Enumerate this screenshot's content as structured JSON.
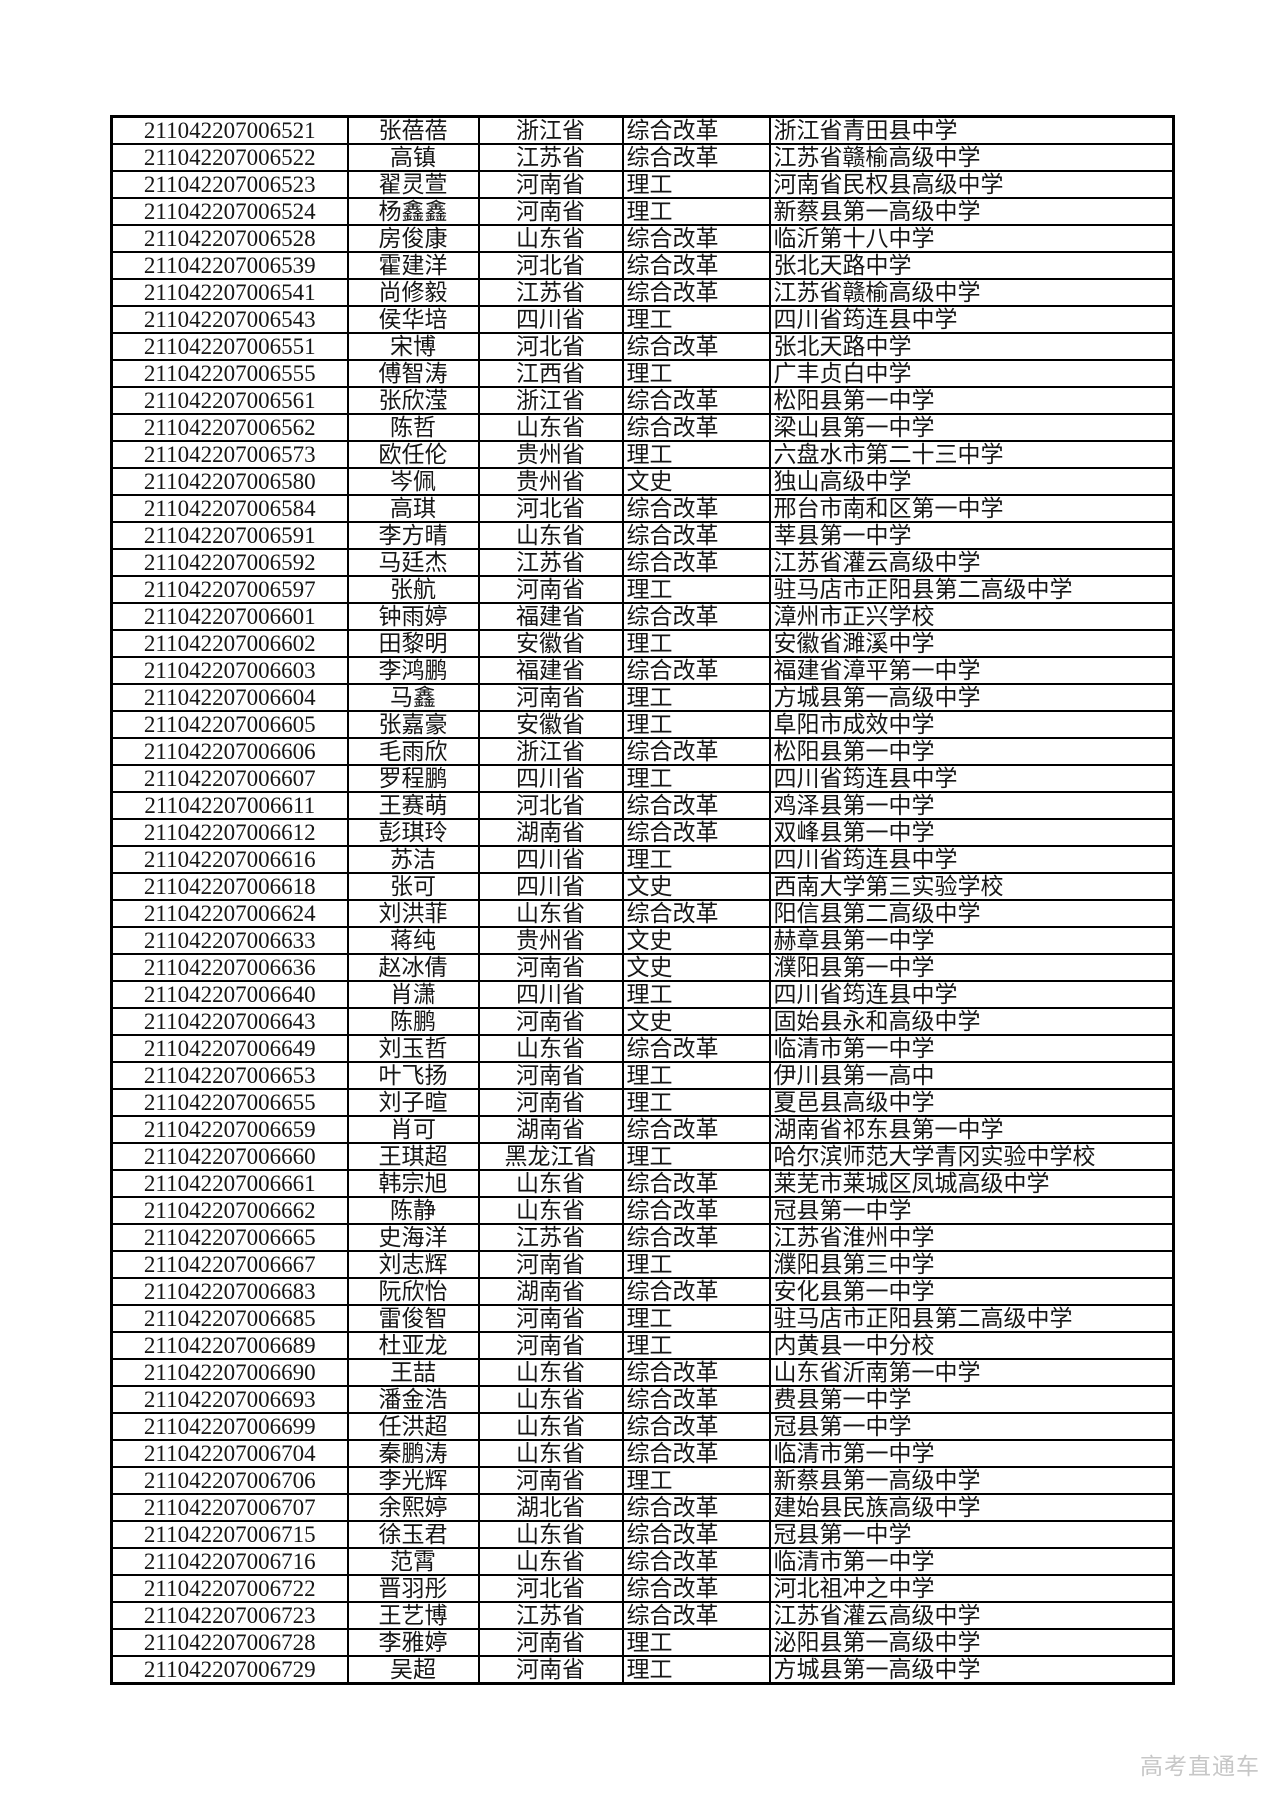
{
  "colors": {
    "grid": "#000000",
    "text": "#161616",
    "watermark": "#c7c7c7",
    "background": "#ffffff"
  },
  "watermark": {
    "text": "高考直通车"
  },
  "table": {
    "rows": [
      [
        "211042207006521",
        "张蓓蓓",
        "浙江省",
        "综合改革",
        "浙江省青田县中学"
      ],
      [
        "211042207006522",
        "高镇",
        "江苏省",
        "综合改革",
        "江苏省赣榆高级中学"
      ],
      [
        "211042207006523",
        "翟灵萱",
        "河南省",
        "理工",
        "河南省民权县高级中学"
      ],
      [
        "211042207006524",
        "杨鑫鑫",
        "河南省",
        "理工",
        "新蔡县第一高级中学"
      ],
      [
        "211042207006528",
        "房俊康",
        "山东省",
        "综合改革",
        "临沂第十八中学"
      ],
      [
        "211042207006539",
        "霍建洋",
        "河北省",
        "综合改革",
        "张北天路中学"
      ],
      [
        "211042207006541",
        "尚修毅",
        "江苏省",
        "综合改革",
        "江苏省赣榆高级中学"
      ],
      [
        "211042207006543",
        "侯华培",
        "四川省",
        "理工",
        "四川省筠连县中学"
      ],
      [
        "211042207006551",
        "宋博",
        "河北省",
        "综合改革",
        "张北天路中学"
      ],
      [
        "211042207006555",
        "傅智涛",
        "江西省",
        "理工",
        "广丰贞白中学"
      ],
      [
        "211042207006561",
        "张欣滢",
        "浙江省",
        "综合改革",
        "松阳县第一中学"
      ],
      [
        "211042207006562",
        "陈哲",
        "山东省",
        "综合改革",
        "梁山县第一中学"
      ],
      [
        "211042207006573",
        "欧任伦",
        "贵州省",
        "理工",
        "六盘水市第二十三中学"
      ],
      [
        "211042207006580",
        "岑佩",
        "贵州省",
        "文史",
        "独山高级中学"
      ],
      [
        "211042207006584",
        "高琪",
        "河北省",
        "综合改革",
        "邢台市南和区第一中学"
      ],
      [
        "211042207006591",
        "李方晴",
        "山东省",
        "综合改革",
        "莘县第一中学"
      ],
      [
        "211042207006592",
        "马廷杰",
        "江苏省",
        "综合改革",
        "江苏省灌云高级中学"
      ],
      [
        "211042207006597",
        "张航",
        "河南省",
        "理工",
        "驻马店市正阳县第二高级中学"
      ],
      [
        "211042207006601",
        "钟雨婷",
        "福建省",
        "综合改革",
        "漳州市正兴学校"
      ],
      [
        "211042207006602",
        "田黎明",
        "安徽省",
        "理工",
        "安徽省濉溪中学"
      ],
      [
        "211042207006603",
        "李鸿鹏",
        "福建省",
        "综合改革",
        "福建省漳平第一中学"
      ],
      [
        "211042207006604",
        "马鑫",
        "河南省",
        "理工",
        "方城县第一高级中学"
      ],
      [
        "211042207006605",
        "张嘉豪",
        "安徽省",
        "理工",
        "阜阳市成效中学"
      ],
      [
        "211042207006606",
        "毛雨欣",
        "浙江省",
        "综合改革",
        "松阳县第一中学"
      ],
      [
        "211042207006607",
        "罗程鹏",
        "四川省",
        "理工",
        "四川省筠连县中学"
      ],
      [
        "211042207006611",
        "王赛萌",
        "河北省",
        "综合改革",
        "鸡泽县第一中学"
      ],
      [
        "211042207006612",
        "彭琪玲",
        "湖南省",
        "综合改革",
        "双峰县第一中学"
      ],
      [
        "211042207006616",
        "苏洁",
        "四川省",
        "理工",
        "四川省筠连县中学"
      ],
      [
        "211042207006618",
        "张可",
        "四川省",
        "文史",
        "西南大学第三实验学校"
      ],
      [
        "211042207006624",
        "刘洪菲",
        "山东省",
        "综合改革",
        "阳信县第二高级中学"
      ],
      [
        "211042207006633",
        "蒋纯",
        "贵州省",
        "文史",
        "赫章县第一中学"
      ],
      [
        "211042207006636",
        "赵冰倩",
        "河南省",
        "文史",
        "濮阳县第一中学"
      ],
      [
        "211042207006640",
        "肖潇",
        "四川省",
        "理工",
        "四川省筠连县中学"
      ],
      [
        "211042207006643",
        "陈鹏",
        "河南省",
        "文史",
        "固始县永和高级中学"
      ],
      [
        "211042207006649",
        "刘玉哲",
        "山东省",
        "综合改革",
        "临清市第一中学"
      ],
      [
        "211042207006653",
        "叶飞扬",
        "河南省",
        "理工",
        "伊川县第一高中"
      ],
      [
        "211042207006655",
        "刘子暄",
        "河南省",
        "理工",
        "夏邑县高级中学"
      ],
      [
        "211042207006659",
        "肖可",
        "湖南省",
        "综合改革",
        "湖南省祁东县第一中学"
      ],
      [
        "211042207006660",
        "王琪超",
        "黑龙江省",
        "理工",
        "哈尔滨师范大学青冈实验中学校"
      ],
      [
        "211042207006661",
        "韩宗旭",
        "山东省",
        "综合改革",
        "莱芜市莱城区凤城高级中学"
      ],
      [
        "211042207006662",
        "陈静",
        "山东省",
        "综合改革",
        "冠县第一中学"
      ],
      [
        "211042207006665",
        "史海洋",
        "江苏省",
        "综合改革",
        "江苏省淮州中学"
      ],
      [
        "211042207006667",
        "刘志辉",
        "河南省",
        "理工",
        "濮阳县第三中学"
      ],
      [
        "211042207006683",
        "阮欣怡",
        "湖南省",
        "综合改革",
        "安化县第一中学"
      ],
      [
        "211042207006685",
        "雷俊智",
        "河南省",
        "理工",
        "驻马店市正阳县第二高级中学"
      ],
      [
        "211042207006689",
        "杜亚龙",
        "河南省",
        "理工",
        "内黄县一中分校"
      ],
      [
        "211042207006690",
        "王喆",
        "山东省",
        "综合改革",
        "山东省沂南第一中学"
      ],
      [
        "211042207006693",
        "潘金浩",
        "山东省",
        "综合改革",
        "费县第一中学"
      ],
      [
        "211042207006699",
        "任洪超",
        "山东省",
        "综合改革",
        "冠县第一中学"
      ],
      [
        "211042207006704",
        "秦鹏涛",
        "山东省",
        "综合改革",
        "临清市第一中学"
      ],
      [
        "211042207006706",
        "李光辉",
        "河南省",
        "理工",
        "新蔡县第一高级中学"
      ],
      [
        "211042207006707",
        "余熙婷",
        "湖北省",
        "综合改革",
        "建始县民族高级中学"
      ],
      [
        "211042207006715",
        "徐玉君",
        "山东省",
        "综合改革",
        "冠县第一中学"
      ],
      [
        "211042207006716",
        "范霄",
        "山东省",
        "综合改革",
        "临清市第一中学"
      ],
      [
        "211042207006722",
        "晋羽彤",
        "河北省",
        "综合改革",
        "河北祖冲之中学"
      ],
      [
        "211042207006723",
        "王艺博",
        "江苏省",
        "综合改革",
        "江苏省灌云高级中学"
      ],
      [
        "211042207006728",
        "李雅婷",
        "河南省",
        "理工",
        "泌阳县第一高级中学"
      ],
      [
        "211042207006729",
        "吴超",
        "河南省",
        "理工",
        "方城县第一高级中学"
      ]
    ]
  }
}
